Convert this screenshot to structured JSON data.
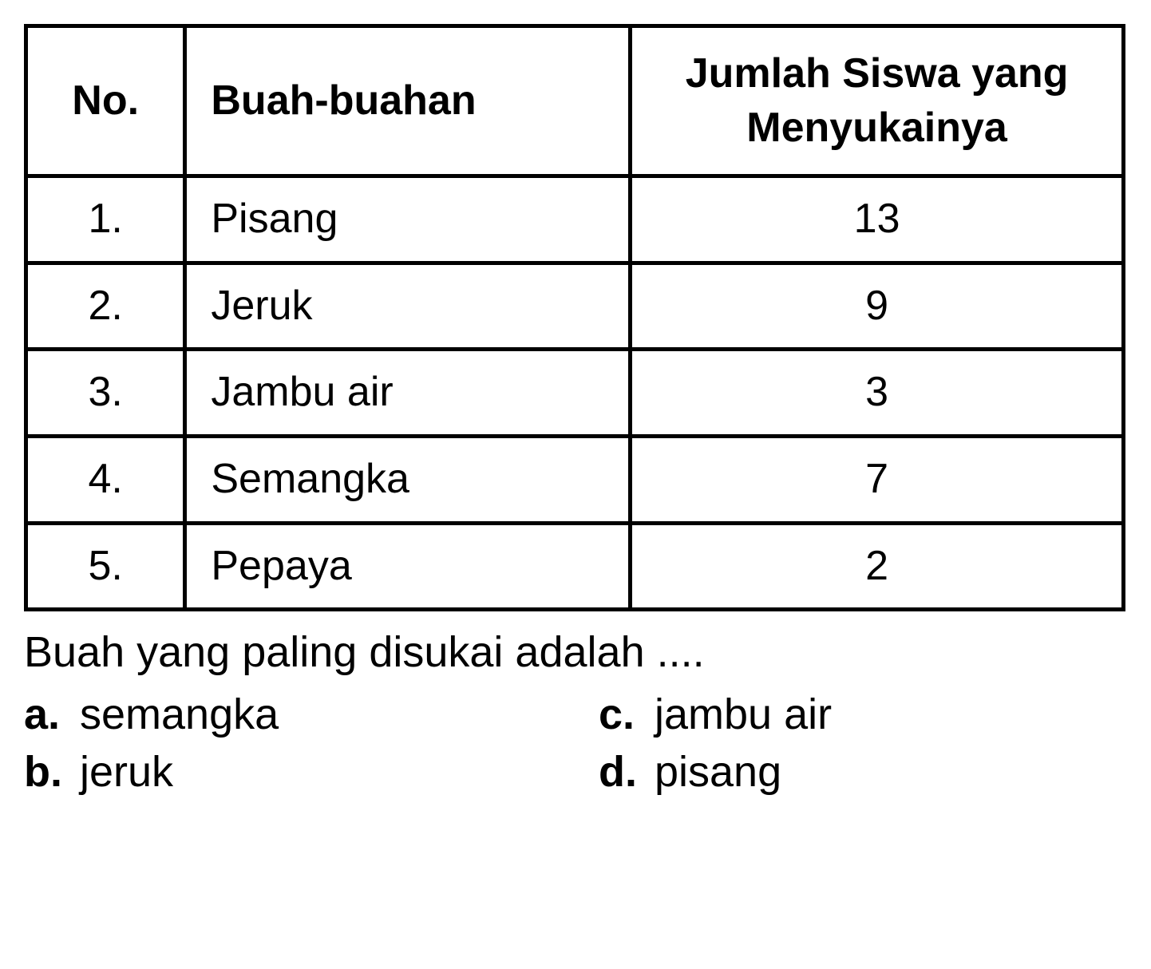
{
  "table": {
    "headers": {
      "no": "No.",
      "fruit": "Buah-buahan",
      "count": "Jumlah Siswa yang Menyukainya"
    },
    "rows": [
      {
        "no": "1.",
        "fruit": "Pisang",
        "count": "13"
      },
      {
        "no": "2.",
        "fruit": "Jeruk",
        "count": "9"
      },
      {
        "no": "3.",
        "fruit": "Jambu air",
        "count": "3"
      },
      {
        "no": "4.",
        "fruit": "Semangka",
        "count": "7"
      },
      {
        "no": "5.",
        "fruit": "Pepaya",
        "count": "2"
      }
    ],
    "border_color": "#000000",
    "background_color": "#ffffff",
    "header_fontsize": 52,
    "cell_fontsize": 52
  },
  "question": {
    "text": "Buah yang paling disukai adalah ....",
    "fontsize": 54
  },
  "options": [
    {
      "letter": "a.",
      "text": "semangka"
    },
    {
      "letter": "b.",
      "text": "jeruk"
    },
    {
      "letter": "c.",
      "text": "jambu air"
    },
    {
      "letter": "d.",
      "text": "pisang"
    }
  ],
  "colors": {
    "text": "#000000",
    "background": "#ffffff",
    "border": "#000000"
  }
}
